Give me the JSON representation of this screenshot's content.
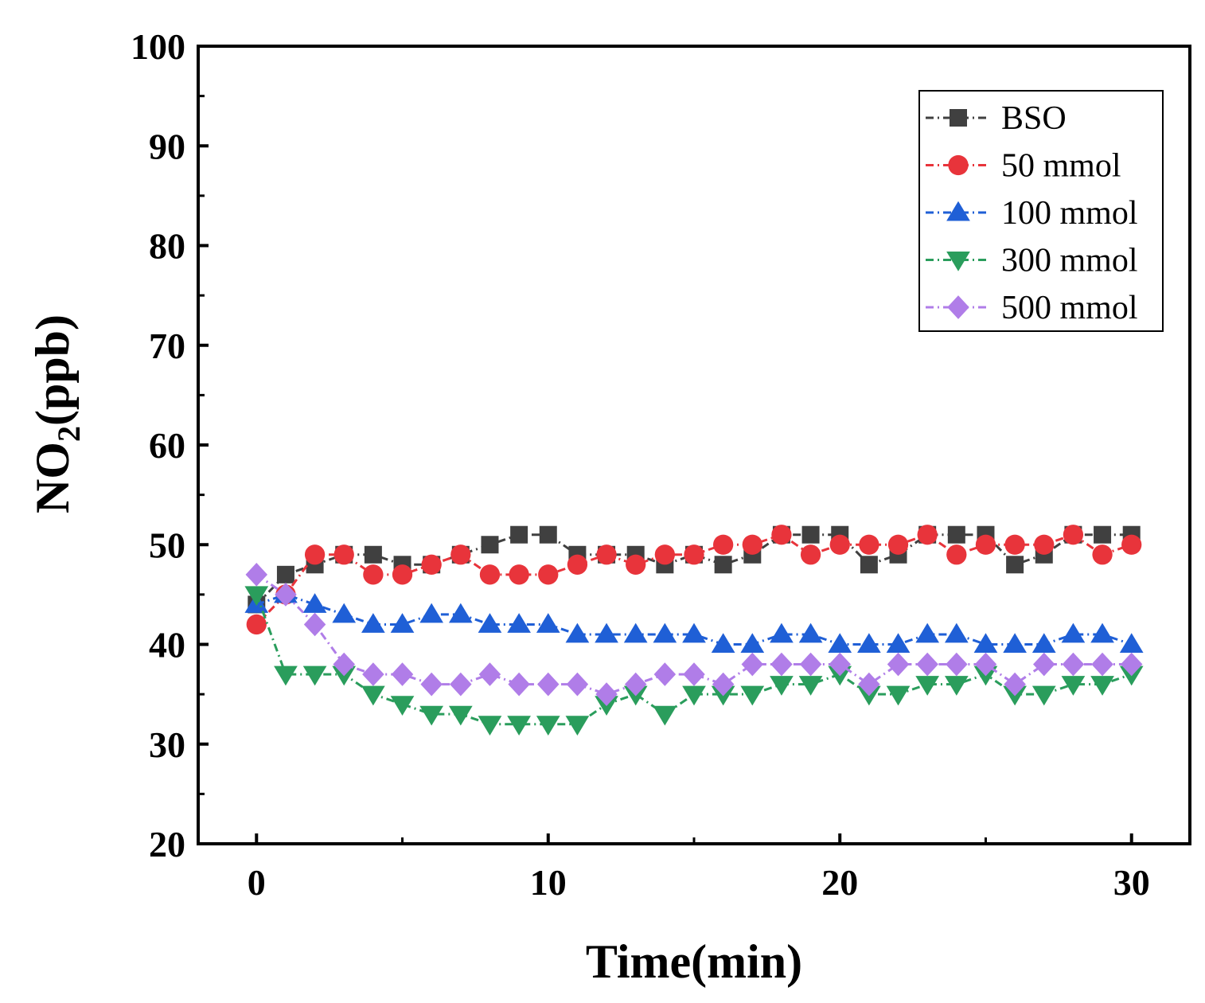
{
  "chart_data": {
    "type": "line",
    "title": "",
    "xlabel": "Time(min)",
    "ylabel_main": "NO",
    "ylabel_sub": "2",
    "ylabel_tail": "(ppb)",
    "xlim": [
      -2,
      32
    ],
    "ylim": [
      20,
      100
    ],
    "xticks": [
      0,
      10,
      20,
      30
    ],
    "yticks": [
      20,
      30,
      40,
      50,
      60,
      70,
      80,
      90,
      100
    ],
    "legend_position": "top-right",
    "x": [
      0,
      1,
      2,
      3,
      4,
      5,
      6,
      7,
      8,
      9,
      10,
      11,
      12,
      13,
      14,
      15,
      16,
      17,
      18,
      19,
      20,
      21,
      22,
      23,
      24,
      25,
      26,
      27,
      28,
      29,
      30
    ],
    "series": [
      {
        "name": "BSO",
        "color": "#404040",
        "marker": "square",
        "values": [
          44,
          47,
          48,
          49,
          49,
          48,
          48,
          49,
          50,
          51,
          51,
          49,
          49,
          49,
          48,
          49,
          48,
          49,
          51,
          51,
          51,
          48,
          49,
          51,
          51,
          51,
          48,
          49,
          51,
          51,
          51
        ]
      },
      {
        "name": "50 mmol",
        "color": "#e8343b",
        "marker": "circle",
        "values": [
          42,
          45,
          49,
          49,
          47,
          47,
          48,
          49,
          47,
          47,
          47,
          48,
          49,
          48,
          49,
          49,
          50,
          50,
          51,
          49,
          50,
          50,
          50,
          51,
          49,
          50,
          50,
          50,
          51,
          49,
          50
        ]
      },
      {
        "name": "100 mmol",
        "color": "#1f5fd6",
        "marker": "triangle-up",
        "values": [
          44,
          45,
          44,
          43,
          42,
          42,
          43,
          43,
          42,
          42,
          42,
          41,
          41,
          41,
          41,
          41,
          40,
          40,
          41,
          41,
          40,
          40,
          40,
          41,
          41,
          40,
          40,
          40,
          41,
          41,
          40
        ]
      },
      {
        "name": "300 mmol",
        "color": "#2a9d5c",
        "marker": "triangle-down",
        "values": [
          45,
          37,
          37,
          37,
          35,
          34,
          33,
          33,
          32,
          32,
          32,
          32,
          34,
          35,
          33,
          35,
          35,
          35,
          36,
          36,
          37,
          35,
          35,
          36,
          36,
          37,
          35,
          35,
          36,
          36,
          37
        ]
      },
      {
        "name": "500 mmol",
        "color": "#b07de8",
        "marker": "diamond",
        "values": [
          47,
          45,
          42,
          38,
          37,
          37,
          36,
          36,
          37,
          36,
          36,
          36,
          35,
          36,
          37,
          37,
          36,
          38,
          38,
          38,
          38,
          36,
          38,
          38,
          38,
          38,
          36,
          38,
          38,
          38,
          38
        ]
      }
    ]
  }
}
